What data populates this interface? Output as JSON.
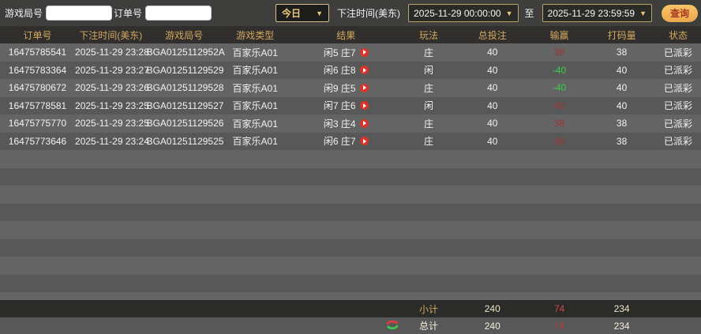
{
  "topbar": {
    "game_round_label": "游戏局号",
    "game_round_value": "",
    "order_no_label": "订单号",
    "order_no_value": "",
    "period_selected": "今日",
    "bet_time_label": "下注时间(美东)",
    "start_time": "2025-11-29 00:00:00",
    "to_label": "至",
    "end_time": "2025-11-29 23:59:59",
    "search_label": "查询"
  },
  "table": {
    "headers": [
      "订单号",
      "下注时间(美东)",
      "游戏局号",
      "游戏类型",
      "结果",
      "玩法",
      "总投注",
      "输赢",
      "打码量",
      "状态"
    ],
    "rows": [
      {
        "order_id": "16475785541",
        "bet_time": "2025-11-29 23:28",
        "round_id": "BGA0125112952A",
        "game_type": "百家乐A01",
        "result": "闲5 庄7",
        "play": "庄",
        "total_bet": "40",
        "win_loss": "38",
        "turnover": "38",
        "status": "已派彩"
      },
      {
        "order_id": "16475783364",
        "bet_time": "2025-11-29 23:27",
        "round_id": "BGA01251129529",
        "game_type": "百家乐A01",
        "result": "闲6 庄8",
        "play": "闲",
        "total_bet": "40",
        "win_loss": "-40",
        "turnover": "40",
        "status": "已派彩"
      },
      {
        "order_id": "16475780672",
        "bet_time": "2025-11-29 23:26",
        "round_id": "BGA01251129528",
        "game_type": "百家乐A01",
        "result": "闲9 庄5",
        "play": "庄",
        "total_bet": "40",
        "win_loss": "-40",
        "turnover": "40",
        "status": "已派彩"
      },
      {
        "order_id": "16475778581",
        "bet_time": "2025-11-29 23:25",
        "round_id": "BGA01251129527",
        "game_type": "百家乐A01",
        "result": "闲7 庄6",
        "play": "闲",
        "total_bet": "40",
        "win_loss": "40",
        "turnover": "40",
        "status": "已派彩"
      },
      {
        "order_id": "16475775770",
        "bet_time": "2025-11-29 23:25",
        "round_id": "BGA01251129526",
        "game_type": "百家乐A01",
        "result": "闲3 庄4",
        "play": "庄",
        "total_bet": "40",
        "win_loss": "38",
        "turnover": "38",
        "status": "已派彩"
      },
      {
        "order_id": "16475773646",
        "bet_time": "2025-11-29 23:24",
        "round_id": "BGA01251129525",
        "game_type": "百家乐A01",
        "result": "闲6 庄7",
        "play": "庄",
        "total_bet": "40",
        "win_loss": "38",
        "turnover": "38",
        "status": "已派彩"
      }
    ]
  },
  "footer": {
    "subtotal_label": "小计",
    "subtotal_bet": "240",
    "subtotal_win": "74",
    "subtotal_turnover": "234",
    "total_label": "总计",
    "total_bet": "240",
    "total_win": "74",
    "total_turnover": "234"
  },
  "colors": {
    "accent_gold": "#d2a85e",
    "win_red": "#9c3434",
    "loss_green": "#35d049",
    "play_icon_red": "#d9342b"
  }
}
